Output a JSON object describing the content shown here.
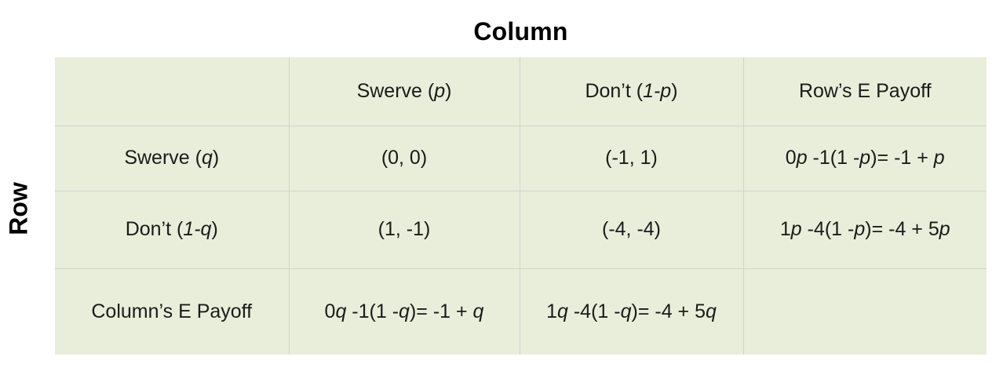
{
  "title": "Column",
  "row_axis_label": "Row",
  "colors": {
    "page_background": "#ffffff",
    "cell_background": "#e9eeda",
    "grid_line": "#d2d3cf",
    "text": "#1b1b1b"
  },
  "table": {
    "grid": [
      [
        [],
        [
          {
            "text": "Swerve ("
          },
          {
            "text": "p",
            "italic": true
          },
          {
            "text": ")"
          }
        ],
        [
          {
            "text": "Don’t ("
          },
          {
            "text": "1-p",
            "italic": true
          },
          {
            "text": ")"
          }
        ],
        [
          {
            "text": "Row’s E Payoff"
          }
        ]
      ],
      [
        [
          {
            "text": "Swerve ("
          },
          {
            "text": "q",
            "italic": true
          },
          {
            "text": ")"
          }
        ],
        [
          {
            "text": "(0, 0)"
          }
        ],
        [
          {
            "text": "(-1, 1)"
          }
        ],
        [
          {
            "text": "0"
          },
          {
            "text": "p",
            "italic": true
          },
          {
            "text": " -1(1 -"
          },
          {
            "text": "p",
            "italic": true
          },
          {
            "text": ")= -1 + "
          },
          {
            "text": "p",
            "italic": true
          }
        ]
      ],
      [
        [
          {
            "text": "Don’t ("
          },
          {
            "text": "1-q",
            "italic": true
          },
          {
            "text": ")"
          }
        ],
        [
          {
            "text": "(1, -1)"
          }
        ],
        [
          {
            "text": "(-4, -4)"
          }
        ],
        [
          {
            "text": "1"
          },
          {
            "text": "p",
            "italic": true
          },
          {
            "text": " -4(1 -"
          },
          {
            "text": "p",
            "italic": true
          },
          {
            "text": ")= -4 + 5"
          },
          {
            "text": "p",
            "italic": true
          }
        ]
      ],
      [
        [
          {
            "text": "Column’s E Payoff"
          }
        ],
        [
          {
            "text": "0"
          },
          {
            "text": "q",
            "italic": true
          },
          {
            "text": " -1(1 -"
          },
          {
            "text": "q",
            "italic": true
          },
          {
            "text": ")= -1 + "
          },
          {
            "text": "q",
            "italic": true
          }
        ],
        [
          {
            "text": "1"
          },
          {
            "text": "q",
            "italic": true
          },
          {
            "text": " -4(1 -"
          },
          {
            "text": "q",
            "italic": true
          },
          {
            "text": ")= -4 + 5"
          },
          {
            "text": "q",
            "italic": true
          }
        ],
        []
      ]
    ]
  }
}
